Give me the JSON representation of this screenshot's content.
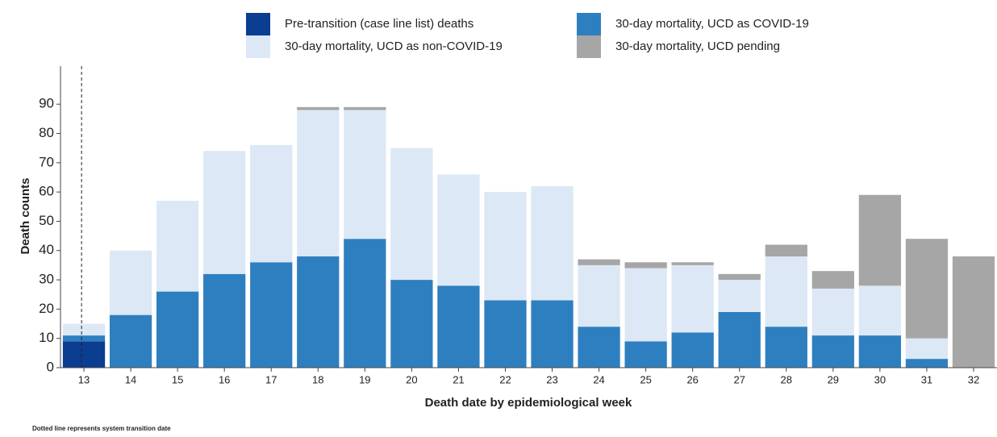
{
  "chart_data": {
    "type": "stacked-bar",
    "x_label": "Death date by epidemiological week",
    "y_label": "Death counts",
    "footnote": "Dotted line represents system transition date",
    "categories": [
      "13",
      "14",
      "15",
      "16",
      "17",
      "18",
      "19",
      "20",
      "21",
      "22",
      "23",
      "24",
      "25",
      "26",
      "27",
      "28",
      "29",
      "30",
      "31",
      "32"
    ],
    "series": [
      {
        "name": "Pre-transition (case line list) deaths",
        "color": "#0b3d91",
        "values": [
          9,
          0,
          0,
          0,
          0,
          0,
          0,
          0,
          0,
          0,
          0,
          0,
          0,
          0,
          0,
          0,
          0,
          0,
          0,
          0
        ]
      },
      {
        "name": "30-day mortality, UCD as COVID-19",
        "color": "#2e7fc0",
        "values": [
          2,
          18,
          26,
          32,
          36,
          38,
          44,
          30,
          28,
          23,
          23,
          14,
          9,
          12,
          19,
          14,
          11,
          11,
          3,
          0
        ]
      },
      {
        "name": "30-day mortality, UCD as non-COVID-19",
        "color": "#dce8f5",
        "values": [
          4,
          22,
          31,
          42,
          40,
          50,
          44,
          45,
          38,
          37,
          39,
          21,
          25,
          23,
          11,
          24,
          16,
          17,
          7,
          0
        ]
      },
      {
        "name": "30-day mortality, UCD pending",
        "color": "#a6a6a6",
        "values": [
          0,
          0,
          0,
          0,
          0,
          1,
          1,
          0,
          0,
          0,
          0,
          2,
          2,
          1,
          2,
          4,
          6,
          31,
          34,
          38
        ]
      }
    ],
    "ylim": [
      0,
      103
    ],
    "yticks": [
      0,
      10,
      20,
      30,
      40,
      50,
      60,
      70,
      80,
      90
    ]
  }
}
